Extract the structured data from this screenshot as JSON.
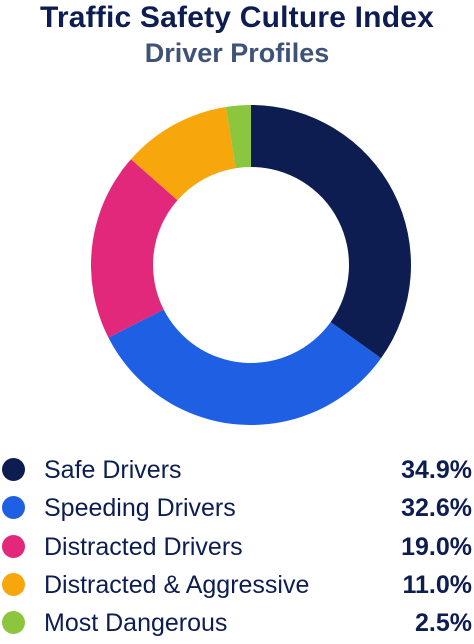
{
  "chart_data": {
    "type": "pie",
    "title": "Traffic Safety Culture Index",
    "subtitle": "Driver Profiles",
    "categories": [
      "Safe Drivers",
      "Speeding Drivers",
      "Distracted Drivers",
      "Distracted & Aggressive",
      "Most Dangerous"
    ],
    "values": [
      34.9,
      32.6,
      19.0,
      11.0,
      2.5
    ],
    "value_labels": [
      "34.9%",
      "32.6%",
      "19.0%",
      "11.0%",
      "2.5%"
    ],
    "colors": [
      "#0d1d52",
      "#1f5fe3",
      "#e2287a",
      "#f7a60b",
      "#8cc63f"
    ],
    "style": "donut",
    "legend_placement": "bottom"
  }
}
